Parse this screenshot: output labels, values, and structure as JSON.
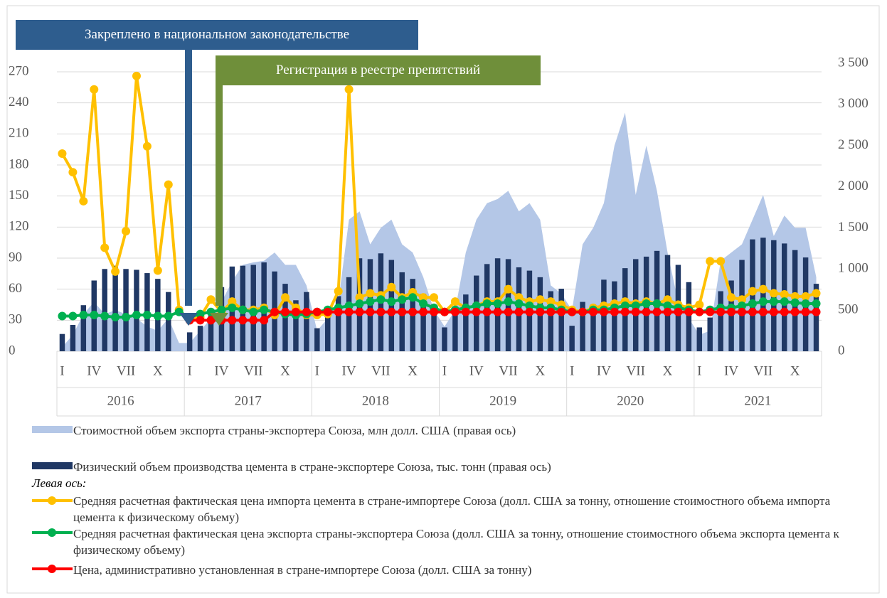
{
  "chart_data": {
    "type": "combo",
    "categories": [
      "I",
      null,
      null,
      "IV",
      null,
      null,
      "VII",
      null,
      null,
      "X",
      null,
      null,
      "I",
      null,
      null,
      "IV",
      null,
      null,
      "VII",
      null,
      null,
      "X",
      null,
      null,
      "I",
      null,
      null,
      "IV",
      null,
      null,
      "VII",
      null,
      null,
      "X",
      null,
      null,
      "I",
      null,
      null,
      "IV",
      null,
      null,
      "VII",
      null,
      null,
      "X",
      null,
      null,
      "I",
      null,
      null,
      "IV",
      null,
      null,
      "VII",
      null,
      null,
      "X",
      null,
      null,
      "I",
      null,
      null,
      "IV",
      null,
      null,
      "VII",
      null,
      null,
      "X",
      null,
      null
    ],
    "years": [
      "2016",
      "2017",
      "2018",
      "2019",
      "2020",
      "2021"
    ],
    "ylim": [
      0,
      270
    ],
    "yticks": [
      0,
      30,
      60,
      90,
      120,
      150,
      180,
      210,
      240,
      270
    ],
    "y2lim": [
      0,
      3500
    ],
    "y2ticks": [
      0,
      {
        "value": 500,
        "label": "500"
      },
      {
        "value": 1000,
        "label": "1 000"
      },
      {
        "value": 1500,
        "label": "1 500"
      },
      {
        "value": 2000,
        "label": "2 000"
      },
      {
        "value": 2500,
        "label": "2 500"
      },
      {
        "value": 3000,
        "label": "3 000"
      },
      {
        "value": 3500,
        "label": "3 500"
      }
    ],
    "grid": true,
    "legend_heading": "Левая ось:",
    "annotations": [
      {
        "text": "Закреплено в национальном законодательстве",
        "color": "#2e5d8e"
      },
      {
        "text": "Регистрация в реестре препятствий",
        "color": "#6f8f3a"
      }
    ],
    "series": [
      {
        "name": "Стоимостной объем экспорта страны-экспортера Союза, млн долл. США (правая ось)",
        "type": "area",
        "axis": "y2",
        "color": "#b4c7e7",
        "values": [
          50,
          200,
          450,
          600,
          450,
          500,
          450,
          400,
          300,
          250,
          400,
          100,
          100,
          250,
          400,
          600,
          850,
          1050,
          1080,
          1100,
          1200,
          1050,
          1050,
          800,
          250,
          400,
          600,
          1600,
          1700,
          1300,
          1500,
          1600,
          1300,
          1200,
          900,
          500,
          300,
          500,
          1200,
          1600,
          1800,
          1850,
          1950,
          1700,
          1800,
          1600,
          800,
          700,
          500,
          1300,
          1500,
          1800,
          2500,
          2900,
          1900,
          2500,
          1950,
          1200,
          600,
          400,
          200,
          250,
          1100,
          1200,
          1300,
          1600,
          1900,
          1400,
          1650,
          1500,
          1500,
          900
        ]
      },
      {
        "name": "Физический объем производства цемента в стране-экспортере Союза, тыс. тонн (правая ось)",
        "type": "bar",
        "axis": "y2",
        "color": "#203864",
        "values": [
          210,
          320,
          560,
          860,
          1000,
          1040,
          1000,
          990,
          950,
          880,
          720,
          0,
          230,
          310,
          460,
          780,
          1030,
          1040,
          1050,
          1080,
          970,
          820,
          620,
          720,
          280,
          450,
          670,
          900,
          1130,
          1120,
          1190,
          1110,
          960,
          880,
          700,
          450,
          290,
          530,
          690,
          920,
          1060,
          1130,
          1120,
          1020,
          980,
          900,
          730,
          760,
          310,
          600,
          570,
          870,
          850,
          1010,
          1120,
          1150,
          1220,
          1170,
          1050,
          840,
          290,
          410,
          730,
          860,
          1110,
          1360,
          1380,
          1350,
          1310,
          1230,
          1140,
          820
        ]
      },
      {
        "name": "Средняя расчетная фактическая цена импорта цемента в стране-импортере Союза (долл. США за тонну, отношение стоимостного объема импорта цемента к физическому объему)",
        "type": "line",
        "color": "#ffc000",
        "values": [
          191,
          173,
          145,
          253,
          100,
          77,
          116,
          266,
          198,
          78,
          161,
          40,
          30,
          33,
          50,
          38,
          48,
          40,
          40,
          42,
          35,
          52,
          42,
          35,
          35,
          36,
          58,
          253,
          52,
          56,
          54,
          62,
          52,
          57,
          52,
          52,
          38,
          48,
          42,
          44,
          48,
          48,
          60,
          52,
          48,
          50,
          48,
          45,
          40,
          38,
          42,
          44,
          46,
          48,
          46,
          48,
          46,
          50,
          45,
          42,
          45,
          87,
          87,
          52,
          50,
          58,
          60,
          56,
          55,
          53,
          53,
          56
        ]
      },
      {
        "name": " Средняя расчетная фактическая цена экспорта страны-экспортера Союза  (долл. США за тонну, отношение стоимостного объема экспорта цемента к физическому объему)",
        "type": "line",
        "color": "#00b050",
        "values": [
          34,
          34,
          35,
          35,
          34,
          33,
          33,
          35,
          35,
          34,
          34,
          38,
          33,
          36,
          38,
          40,
          42,
          40,
          38,
          40,
          38,
          36,
          35,
          36,
          38,
          40,
          42,
          44,
          46,
          48,
          50,
          48,
          50,
          52,
          46,
          42,
          38,
          40,
          42,
          44,
          46,
          46,
          48,
          46,
          44,
          42,
          42,
          40,
          38,
          38,
          40,
          40,
          42,
          44,
          44,
          46,
          46,
          44,
          42,
          40,
          38,
          40,
          42,
          42,
          44,
          46,
          48,
          48,
          48,
          47,
          46,
          46
        ]
      },
      {
        "name": "Цена, административно установленная в стране-импортере Союза (долл. США  за тонну)",
        "type": "line",
        "color": "#ff0000",
        "values": [
          null,
          null,
          null,
          null,
          null,
          null,
          null,
          null,
          null,
          null,
          null,
          null,
          30,
          30,
          30,
          30,
          30,
          30,
          30,
          30,
          38,
          38,
          38,
          38,
          38,
          38,
          38,
          38,
          38,
          38,
          38,
          38,
          38,
          38,
          38,
          38,
          38,
          38,
          38,
          38,
          38,
          38,
          38,
          38,
          38,
          38,
          38,
          38,
          38,
          38,
          38,
          38,
          38,
          38,
          38,
          38,
          38,
          38,
          38,
          38,
          38,
          38,
          38,
          38,
          38,
          38,
          38,
          38,
          38,
          38,
          38,
          38
        ]
      }
    ]
  }
}
